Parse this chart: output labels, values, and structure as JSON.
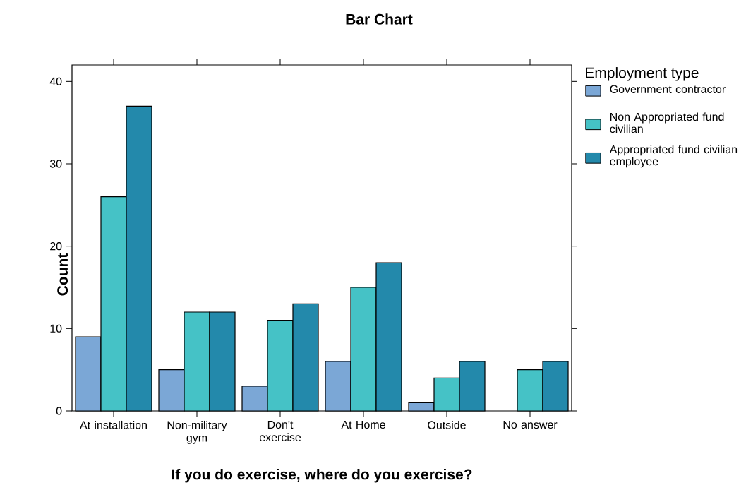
{
  "chart_data": {
    "type": "bar",
    "title": "Bar Chart",
    "xlabel": "If you do exercise, where do you exercise?",
    "ylabel": "Count",
    "legend_title": "Employment type",
    "categories": [
      "At installation",
      "Non-military gym",
      "Don't exercise",
      "At Home",
      "Outside",
      "No answer"
    ],
    "series": [
      {
        "name": "Government contractor",
        "color": "#7ba7d6",
        "values": [
          9,
          5,
          3,
          6,
          1,
          null
        ]
      },
      {
        "name": "Non Appropriated fund civilian",
        "color": "#45c2c6",
        "values": [
          26,
          12,
          11,
          15,
          4,
          5
        ]
      },
      {
        "name": "Appropriated fund civilian employee",
        "color": "#2389ab",
        "values": [
          37,
          12,
          13,
          18,
          6,
          6
        ]
      }
    ],
    "ylim": [
      0,
      42
    ],
    "yticks": [
      0,
      10,
      20,
      30,
      40
    ],
    "grid": false,
    "legend": "right"
  }
}
